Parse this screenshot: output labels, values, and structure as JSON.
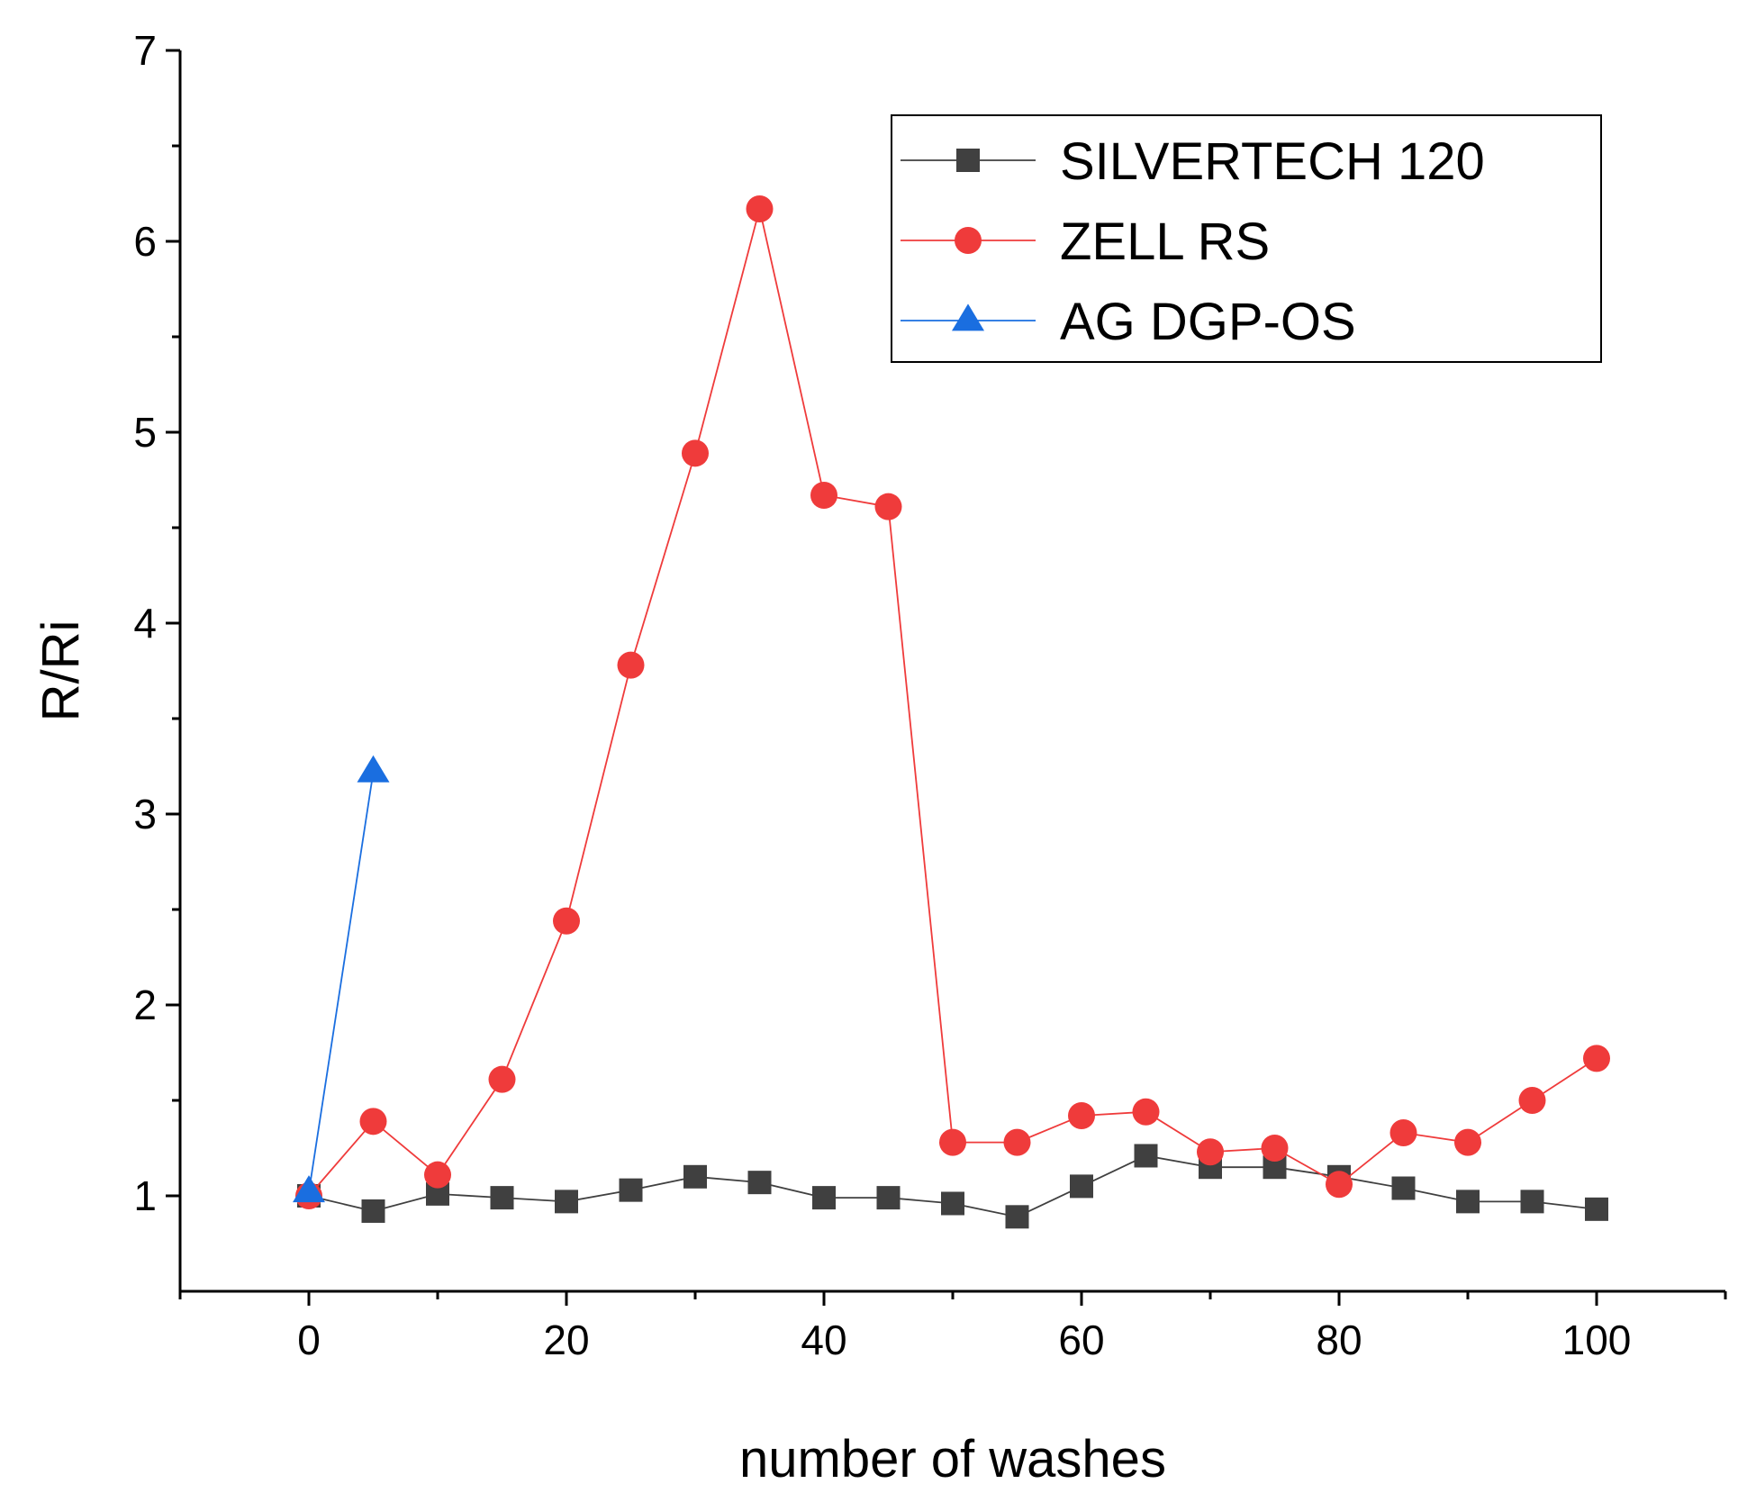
{
  "chart_data": {
    "type": "line",
    "title": "",
    "xlabel": "number of washes",
    "ylabel": "R/Ri",
    "xlim": [
      -10,
      110
    ],
    "ylim": [
      0.5,
      7
    ],
    "xticks": [
      0,
      20,
      40,
      60,
      80,
      100
    ],
    "xticks_minor": [
      -10,
      10,
      30,
      50,
      70,
      90,
      110
    ],
    "yticks": [
      1,
      2,
      3,
      4,
      5,
      6,
      7
    ],
    "yticks_minor": [
      1.5,
      2.5,
      3.5,
      4.5,
      5.5,
      6.5
    ],
    "grid": false,
    "legend_position": "top-right",
    "series": [
      {
        "name": "SILVERTECH 120",
        "color": "#404040",
        "marker": "square",
        "x": [
          0,
          5,
          10,
          15,
          20,
          25,
          30,
          35,
          40,
          45,
          50,
          55,
          60,
          65,
          70,
          75,
          80,
          85,
          90,
          95,
          100
        ],
        "y": [
          1.0,
          0.92,
          1.01,
          0.99,
          0.97,
          1.03,
          1.1,
          1.07,
          0.99,
          0.99,
          0.96,
          0.89,
          1.05,
          1.21,
          1.15,
          1.15,
          1.1,
          1.04,
          0.97,
          0.97,
          0.93
        ]
      },
      {
        "name": "ZELL RS",
        "color": "#ef3b3b",
        "marker": "circle",
        "x": [
          0,
          5,
          10,
          15,
          20,
          25,
          30,
          35,
          40,
          45,
          50,
          55,
          60,
          65,
          70,
          75,
          80,
          85,
          90,
          95,
          100
        ],
        "y": [
          1.0,
          1.39,
          1.11,
          1.61,
          2.44,
          3.78,
          4.89,
          6.17,
          4.67,
          4.61,
          1.28,
          1.28,
          1.42,
          1.44,
          1.23,
          1.25,
          1.06,
          1.33,
          1.28,
          1.5,
          1.72
        ]
      },
      {
        "name": "AG DGP-OS",
        "color": "#1a6ee0",
        "marker": "triangle",
        "x": [
          0,
          5
        ],
        "y": [
          1.02,
          3.22
        ]
      }
    ]
  }
}
